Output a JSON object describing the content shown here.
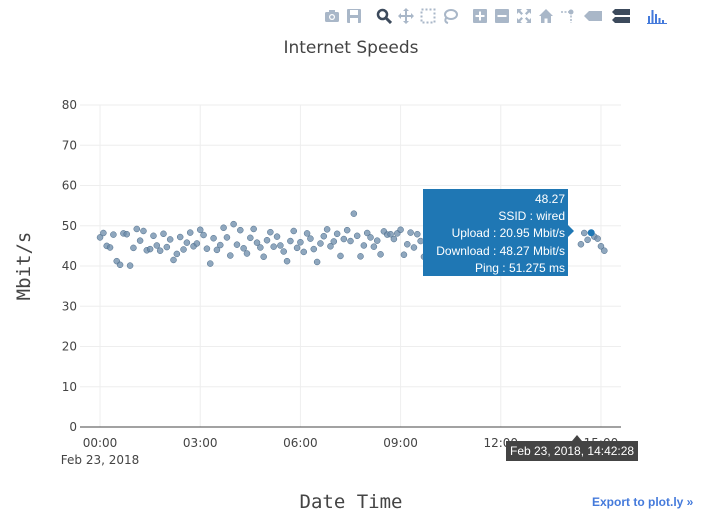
{
  "modebar": {
    "buttons": [
      "camera-icon",
      "save-icon",
      "sep",
      "zoom-icon",
      "pan-icon",
      "box-select-icon",
      "lasso-icon",
      "sep",
      "zoom-in-icon",
      "zoom-out-icon",
      "autoscale-icon",
      "reset-axes-icon",
      "spike-lines-icon",
      "hover-closest-icon",
      "hover-compare-icon",
      "sep",
      "plotly-logo-icon"
    ],
    "color": "#a9b7c8",
    "active_color": "#3c4a5c",
    "logo_color": "#447adb"
  },
  "export_link": "Export to plot.ly »",
  "tooltip": {
    "lines": [
      "48.27",
      "SSID : wired",
      "Upload : 20.95 Mbit/s",
      "Download : 48.27 Mbit/s",
      "Ping : 51.275 ms"
    ],
    "x_label": "Feb 23, 2018, 14:42:28"
  },
  "chart_data": {
    "type": "scatter",
    "title": "Internet Speeds",
    "xlabel": "Date Time",
    "ylabel": "Mbit/s",
    "ylim": [
      0,
      80
    ],
    "yticks": [
      0,
      10,
      20,
      30,
      40,
      50,
      60,
      70,
      80
    ],
    "xlim": [
      -0.6,
      15.6
    ],
    "xticks": [
      {
        "t": 0,
        "label": "00:00",
        "sub": "Feb 23, 2018"
      },
      {
        "t": 3,
        "label": "03:00",
        "sub": ""
      },
      {
        "t": 6,
        "label": "06:00",
        "sub": ""
      },
      {
        "t": 9,
        "label": "09:00",
        "sub": ""
      },
      {
        "t": 12,
        "label": "12:00",
        "sub": ""
      },
      {
        "t": 15,
        "label": "15:00",
        "sub": ""
      }
    ],
    "marker_color": "#6a8aa8",
    "grid": true,
    "highlight": {
      "x": 14.708,
      "y": 48.27
    },
    "x": [
      0.0,
      0.1,
      0.2,
      0.3,
      0.4,
      0.5,
      0.6,
      0.7,
      0.8,
      0.9,
      1.0,
      1.1,
      1.2,
      1.3,
      1.4,
      1.5,
      1.6,
      1.7,
      1.8,
      1.9,
      2.0,
      2.1,
      2.2,
      2.3,
      2.4,
      2.5,
      2.6,
      2.7,
      2.8,
      2.9,
      3.0,
      3.1,
      3.2,
      3.3,
      3.4,
      3.5,
      3.6,
      3.7,
      3.8,
      3.9,
      4.0,
      4.1,
      4.2,
      4.3,
      4.4,
      4.5,
      4.6,
      4.7,
      4.8,
      4.9,
      5.0,
      5.1,
      5.2,
      5.3,
      5.4,
      5.5,
      5.6,
      5.7,
      5.8,
      5.9,
      6.0,
      6.1,
      6.2,
      6.3,
      6.4,
      6.5,
      6.6,
      6.7,
      6.8,
      6.9,
      7.0,
      7.1,
      7.2,
      7.3,
      7.4,
      7.5,
      7.6,
      7.7,
      7.8,
      7.9,
      8.0,
      8.1,
      8.2,
      8.3,
      8.4,
      8.5,
      8.6,
      8.7,
      8.8,
      8.9,
      9.0,
      9.1,
      9.2,
      9.3,
      9.4,
      9.5,
      9.6,
      9.7,
      9.8,
      9.9,
      10.0,
      14.4,
      14.5,
      14.6,
      14.708,
      14.8,
      14.9,
      15.0,
      15.1
    ],
    "y": [
      47.1,
      48.2,
      45.0,
      44.6,
      47.8,
      41.2,
      40.3,
      48.1,
      47.9,
      40.1,
      44.5,
      49.2,
      46.3,
      48.7,
      43.9,
      44.2,
      47.5,
      45.1,
      43.8,
      48.0,
      44.7,
      46.6,
      41.5,
      43.0,
      47.2,
      44.1,
      45.8,
      48.3,
      44.9,
      45.6,
      49.0,
      47.7,
      44.3,
      40.6,
      46.9,
      44.0,
      45.2,
      49.5,
      47.1,
      42.6,
      50.4,
      45.3,
      48.9,
      44.4,
      43.1,
      47.0,
      49.2,
      45.8,
      44.6,
      42.3,
      46.4,
      48.4,
      44.8,
      47.3,
      45.1,
      43.6,
      41.2,
      46.2,
      48.7,
      44.5,
      45.9,
      43.5,
      48.1,
      46.8,
      44.2,
      41.0,
      45.6,
      47.4,
      49.1,
      44.9,
      46.1,
      48.0,
      42.5,
      46.7,
      48.9,
      46.2,
      53.0,
      47.5,
      42.4,
      45.1,
      48.2,
      47.1,
      44.8,
      46.3,
      42.9,
      48.6,
      47.8,
      47.9,
      46.7,
      48.1,
      49.0,
      42.8,
      45.4,
      48.3,
      44.6,
      47.9,
      46.2,
      42.3,
      44.1,
      47.6,
      49.0,
      45.4,
      48.2,
      46.5,
      48.27,
      47.3,
      46.8,
      44.9,
      43.8
    ]
  }
}
